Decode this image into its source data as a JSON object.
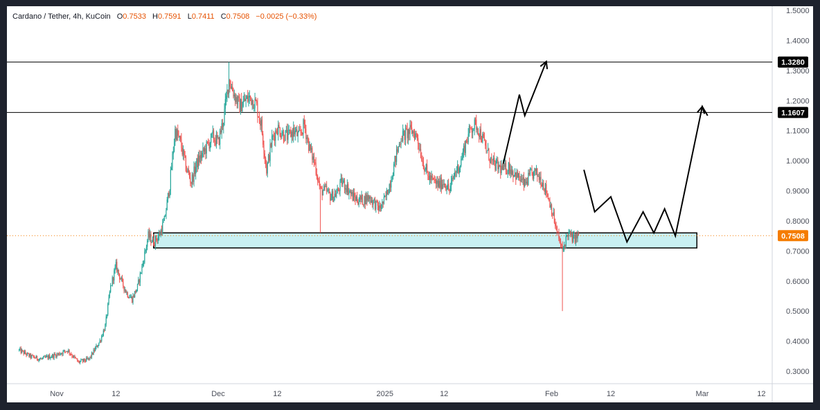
{
  "header": {
    "symbol": "Cardano / Tether, 4h, KuCoin",
    "open_label": "O",
    "open": "0.7533",
    "high_label": "H",
    "high": "0.7591",
    "low_label": "L",
    "low": "0.7411",
    "close_label": "C",
    "close": "0.7508",
    "change": "−0.0025 (−0.33%)"
  },
  "colors": {
    "up": "#26a69a",
    "down": "#ef5350",
    "last_price": "#f57c00",
    "zone_fill": "#c9f0f2",
    "text": "#131722",
    "axis_text": "#4a4e59"
  },
  "chart_data": {
    "type": "candlestick",
    "symbol": "Cardano / Tether",
    "interval": "4h",
    "exchange": "KuCoin",
    "scale": "linear",
    "grid": false,
    "ylim": [
      0.25,
      1.55
    ],
    "y_ticks": [
      "1.5000",
      "1.4000",
      "1.3000",
      "1.2000",
      "1.1000",
      "1.0000",
      "0.9000",
      "0.8000",
      "0.7000",
      "0.6000",
      "0.5000",
      "0.4000",
      "0.3000"
    ],
    "x_ticks": [
      "Nov",
      "12",
      "Dec",
      "12",
      "2025",
      "12",
      "Feb",
      "12",
      "Mar",
      "12"
    ],
    "x_tick_dates": [
      "2024-11-01",
      "2024-11-12",
      "2024-12-01",
      "2024-12-12",
      "2025-01-01",
      "2025-01-12",
      "2025-02-01",
      "2025-02-12",
      "2025-03-01",
      "2025-03-12"
    ],
    "last_price": "0.7508",
    "horizontal_levels": [
      {
        "value": 1.328,
        "label": "1.3280"
      },
      {
        "value": 1.1607,
        "label": "1.1607"
      }
    ],
    "support_zone": {
      "from_date": "2024-11-19",
      "to_date": "2025-02-28",
      "low": 0.71,
      "high": 0.76
    },
    "price_path": [
      [
        "2024-10-25",
        0.37
      ],
      [
        "2024-10-27",
        0.35
      ],
      [
        "2024-10-29",
        0.34
      ],
      [
        "2024-11-01",
        0.355
      ],
      [
        "2024-11-03",
        0.37
      ],
      [
        "2024-11-05",
        0.33
      ],
      [
        "2024-11-07",
        0.34
      ],
      [
        "2024-11-09",
        0.4
      ],
      [
        "2024-11-10",
        0.45
      ],
      [
        "2024-11-11",
        0.58
      ],
      [
        "2024-11-12",
        0.65
      ],
      [
        "2024-11-13",
        0.6
      ],
      [
        "2024-11-14",
        0.56
      ],
      [
        "2024-11-15",
        0.54
      ],
      [
        "2024-11-16",
        0.58
      ],
      [
        "2024-11-17",
        0.66
      ],
      [
        "2024-11-18",
        0.75
      ],
      [
        "2024-11-19",
        0.73
      ],
      [
        "2024-11-20",
        0.75
      ],
      [
        "2024-11-21",
        0.8
      ],
      [
        "2024-11-22",
        0.92
      ],
      [
        "2024-11-23",
        1.1
      ],
      [
        "2024-11-24",
        1.06
      ],
      [
        "2024-11-25",
        0.98
      ],
      [
        "2024-11-26",
        0.93
      ],
      [
        "2024-11-27",
        0.99
      ],
      [
        "2024-11-28",
        1.02
      ],
      [
        "2024-11-29",
        1.05
      ],
      [
        "2024-11-30",
        1.08
      ],
      [
        "2024-12-01",
        1.06
      ],
      [
        "2024-12-02",
        1.14
      ],
      [
        "2024-12-03",
        1.27
      ],
      [
        "2024-12-04",
        1.22
      ],
      [
        "2024-12-05",
        1.18
      ],
      [
        "2024-12-06",
        1.2
      ],
      [
        "2024-12-07",
        1.21
      ],
      [
        "2024-12-08",
        1.19
      ],
      [
        "2024-12-09",
        1.12
      ],
      [
        "2024-12-10",
        0.97
      ],
      [
        "2024-12-11",
        1.07
      ],
      [
        "2024-12-12",
        1.11
      ],
      [
        "2024-12-13",
        1.09
      ],
      [
        "2024-12-14",
        1.08
      ],
      [
        "2024-12-15",
        1.1
      ],
      [
        "2024-12-16",
        1.08
      ],
      [
        "2024-12-17",
        1.12
      ],
      [
        "2024-12-18",
        1.04
      ],
      [
        "2024-12-19",
        0.99
      ],
      [
        "2024-12-20",
        0.9
      ],
      [
        "2024-12-21",
        0.9
      ],
      [
        "2024-12-22",
        0.88
      ],
      [
        "2024-12-23",
        0.89
      ],
      [
        "2024-12-24",
        0.93
      ],
      [
        "2024-12-25",
        0.91
      ],
      [
        "2024-12-26",
        0.88
      ],
      [
        "2024-12-27",
        0.87
      ],
      [
        "2024-12-28",
        0.87
      ],
      [
        "2024-12-29",
        0.88
      ],
      [
        "2024-12-30",
        0.86
      ],
      [
        "2024-12-31",
        0.84
      ],
      [
        "2025-01-01",
        0.87
      ],
      [
        "2025-01-02",
        0.93
      ],
      [
        "2025-01-03",
        1.01
      ],
      [
        "2025-01-04",
        1.08
      ],
      [
        "2025-01-05",
        1.09
      ],
      [
        "2025-01-06",
        1.1
      ],
      [
        "2025-01-07",
        1.08
      ],
      [
        "2025-01-08",
        1.0
      ],
      [
        "2025-01-09",
        0.95
      ],
      [
        "2025-01-10",
        0.93
      ],
      [
        "2025-01-11",
        0.92
      ],
      [
        "2025-01-12",
        0.93
      ],
      [
        "2025-01-13",
        0.9
      ],
      [
        "2025-01-14",
        0.96
      ],
      [
        "2025-01-15",
        0.99
      ],
      [
        "2025-01-16",
        1.06
      ],
      [
        "2025-01-17",
        1.11
      ],
      [
        "2025-01-18",
        1.12
      ],
      [
        "2025-01-19",
        1.08
      ],
      [
        "2025-01-20",
        1.03
      ],
      [
        "2025-01-21",
        0.99
      ],
      [
        "2025-01-22",
        0.98
      ],
      [
        "2025-01-23",
        0.97
      ],
      [
        "2025-01-24",
        0.98
      ],
      [
        "2025-01-25",
        0.96
      ],
      [
        "2025-01-26",
        0.94
      ],
      [
        "2025-01-27",
        0.92
      ],
      [
        "2025-01-28",
        0.95
      ],
      [
        "2025-01-29",
        0.96
      ],
      [
        "2025-01-30",
        0.94
      ],
      [
        "2025-01-31",
        0.9
      ],
      [
        "2025-02-01",
        0.84
      ],
      [
        "2025-02-02",
        0.76
      ],
      [
        "2025-02-03",
        0.7
      ],
      [
        "2025-02-04",
        0.76
      ],
      [
        "2025-02-05",
        0.74
      ],
      [
        "2025-02-06",
        0.7508
      ]
    ],
    "notable_wicks": [
      {
        "date": "2024-12-03",
        "high": 1.328
      },
      {
        "date": "2024-12-20",
        "low": 0.76
      },
      {
        "date": "2025-02-03",
        "low": 0.5
      }
    ],
    "projection_paths": [
      [
        [
          "2025-01-23",
          0.99
        ],
        [
          "2025-01-26",
          1.22
        ],
        [
          "2025-01-27",
          1.15
        ],
        [
          "2025-01-31",
          1.33
        ]
      ],
      [
        [
          "2025-02-07",
          0.97
        ],
        [
          "2025-02-09",
          0.83
        ],
        [
          "2025-02-12",
          0.88
        ],
        [
          "2025-02-15",
          0.73
        ],
        [
          "2025-02-18",
          0.83
        ],
        [
          "2025-02-20",
          0.76
        ],
        [
          "2025-02-22",
          0.84
        ],
        [
          "2025-02-24",
          0.75
        ],
        [
          "2025-03-01",
          1.18
        ],
        [
          "2025-03-02",
          1.15
        ]
      ]
    ]
  }
}
